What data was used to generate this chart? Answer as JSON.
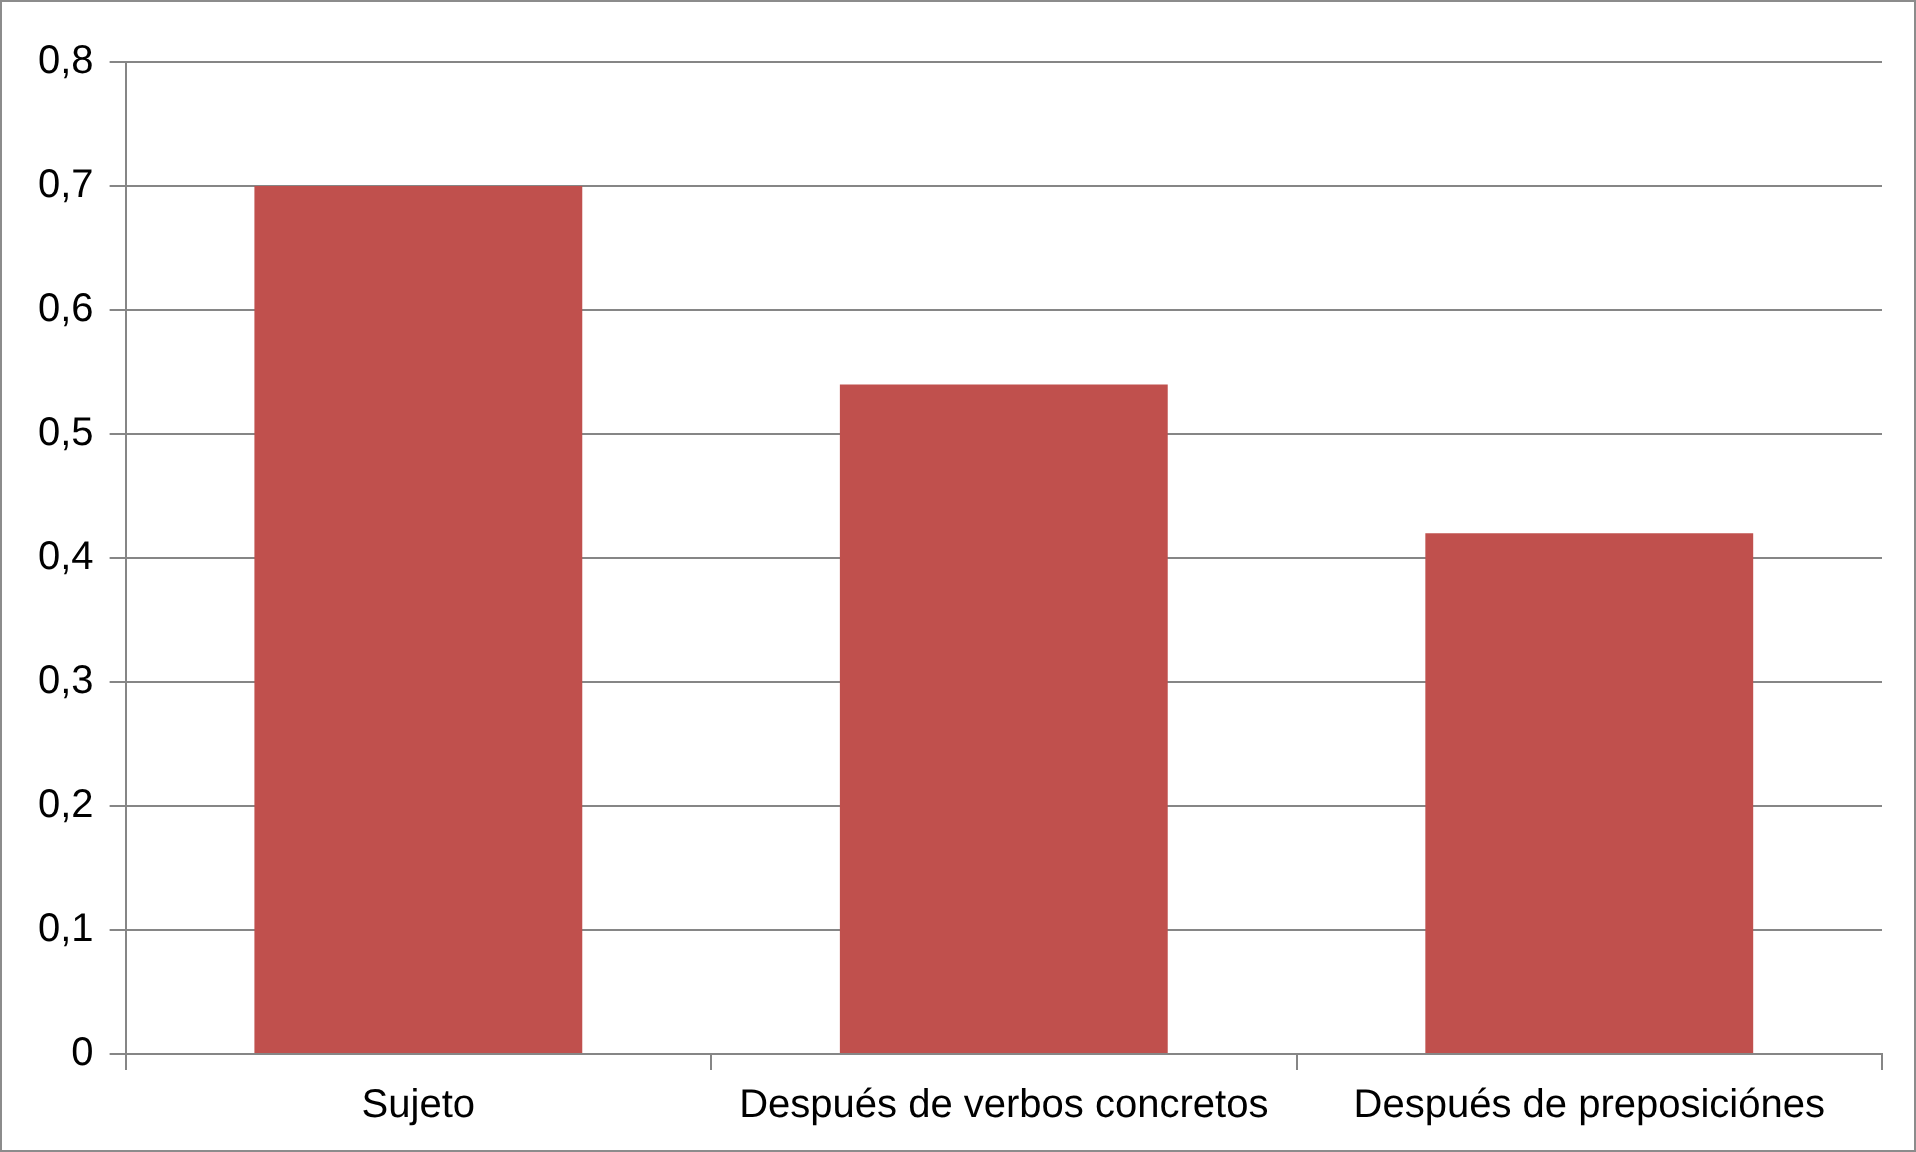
{
  "chart_data": {
    "type": "bar",
    "categories": [
      "Sujeto",
      "Después de verbos concretos",
      "Después de preposiciónes"
    ],
    "values": [
      0.7,
      0.54,
      0.42
    ],
    "color": "#c0504d",
    "ylim": [
      0,
      0.8
    ],
    "yticks": [
      0,
      {
        "value": 0.1,
        "label": "0,1"
      },
      {
        "value": 0.2,
        "label": "0,2"
      },
      {
        "value": 0.3,
        "label": "0,3"
      },
      {
        "value": 0.4,
        "label": "0,4"
      },
      {
        "value": 0.5,
        "label": "0,5"
      },
      {
        "value": 0.6,
        "label": "0,6"
      },
      {
        "value": 0.7,
        "label": "0,7"
      },
      {
        "value": 0.8,
        "label": "0,8"
      }
    ],
    "grid": "y",
    "legend": false
  }
}
